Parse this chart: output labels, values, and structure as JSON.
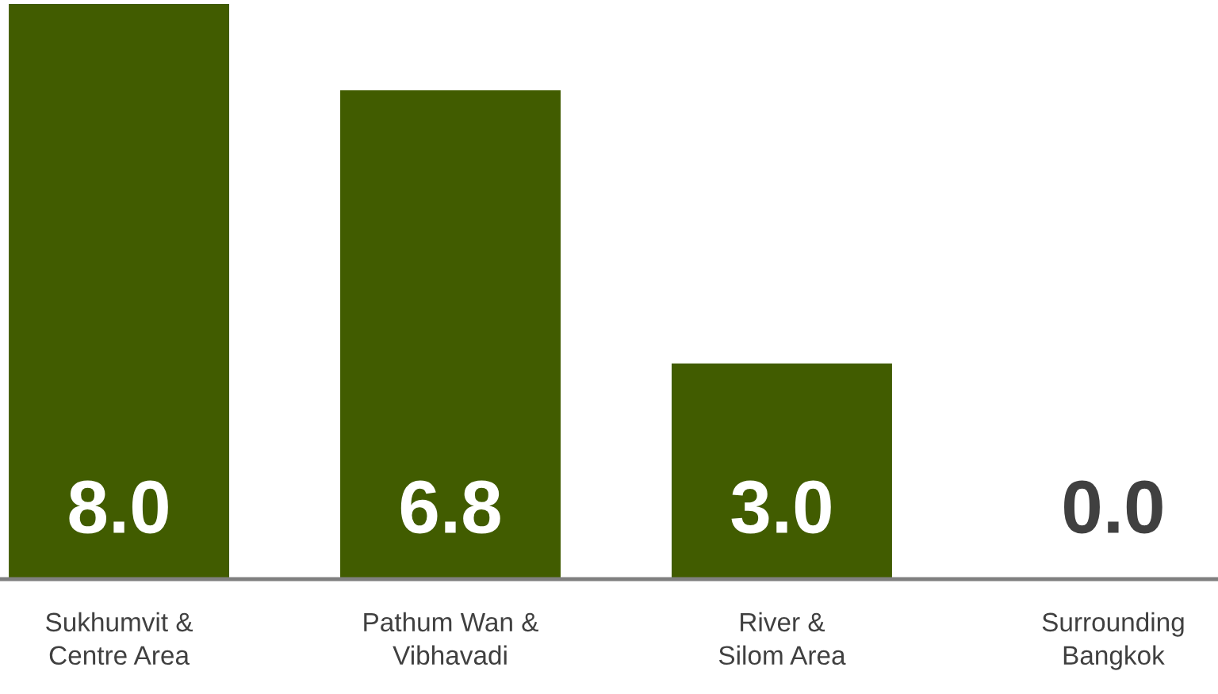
{
  "chart_data": {
    "type": "bar",
    "categories": [
      "Sukhumvit &\nCentre Area",
      "Pathum Wan &\nVibhavadi",
      "River &\nSilom Area",
      "Surrounding\nBangkok"
    ],
    "values": [
      8.0,
      6.8,
      3.0,
      0.0
    ],
    "value_labels": [
      "8.0",
      "6.8",
      "3.0",
      "0.0"
    ],
    "color": "#415c00",
    "grid": false,
    "legend": false
  }
}
